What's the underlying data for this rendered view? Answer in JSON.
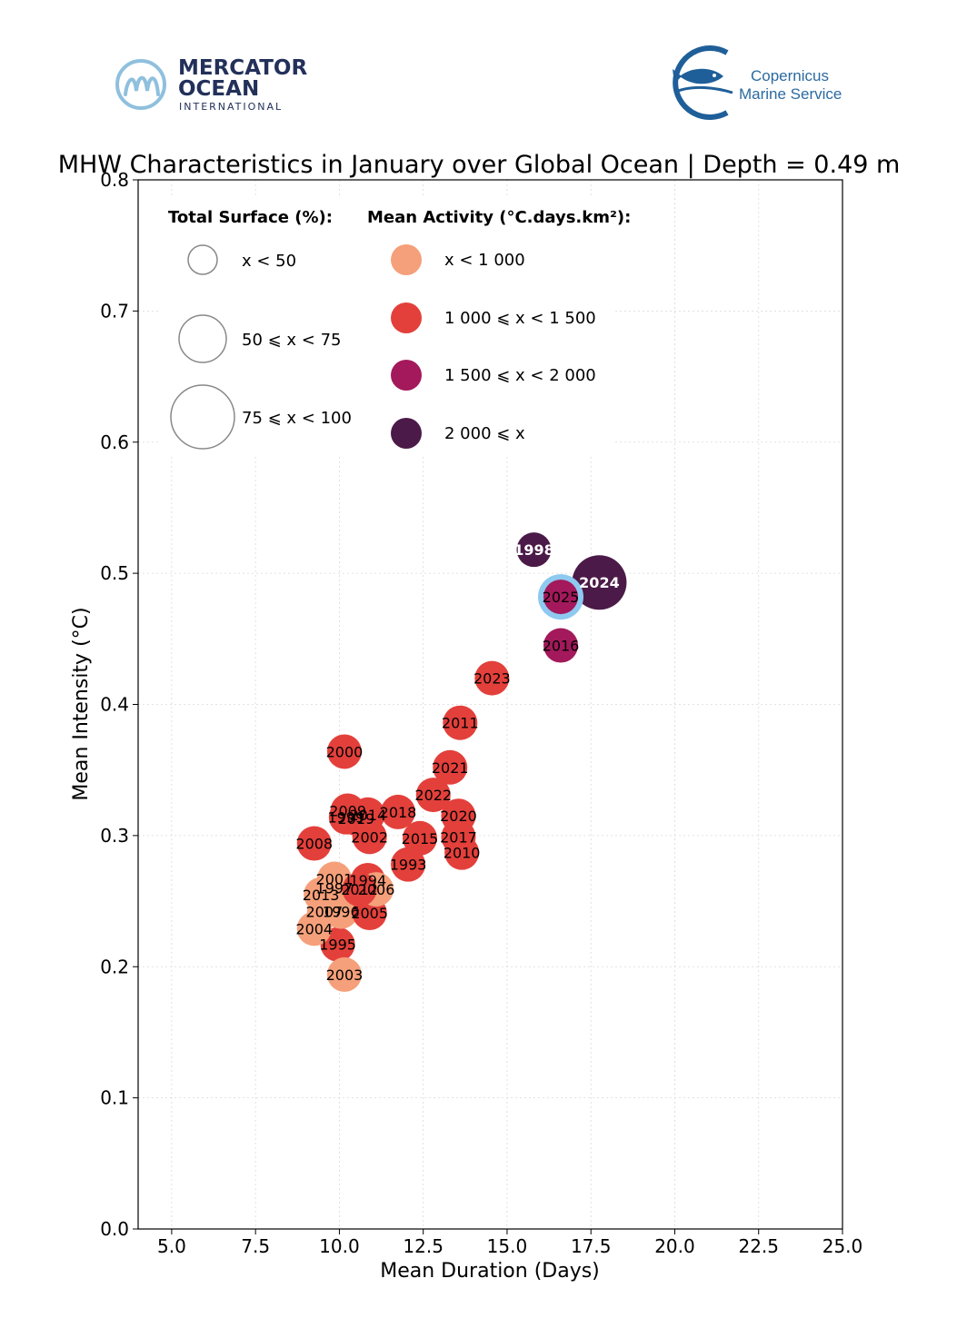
{
  "logos": {
    "mercator_line1": "MERCATOR",
    "mercator_line2": "OCEAN",
    "mercator_line3": "INTERNATIONAL",
    "copernicus_line1": "Copernicus",
    "copernicus_line2": "Marine Service"
  },
  "colors": {
    "lt1000": "#f5a07a",
    "c1000_1500": "#e3403b",
    "c1500_2000": "#a3195b",
    "ge2000": "#4b1a48",
    "highlight_ring": "#8ec9f0"
  },
  "chart_data": {
    "type": "scatter",
    "title": "MHW Characteristics in January over Global Ocean | Depth = 0.49 m",
    "xlabel": "Mean Duration (Days)",
    "ylabel": "Mean Intensity (°C)",
    "xlim": [
      4,
      25
    ],
    "ylim": [
      0,
      0.8
    ],
    "xticks": [
      "5.0",
      "7.5",
      "10.0",
      "12.5",
      "15.0",
      "17.5",
      "20.0",
      "22.5",
      "25.0"
    ],
    "yticks": [
      "0.0",
      "0.1",
      "0.2",
      "0.3",
      "0.4",
      "0.5",
      "0.6",
      "0.7",
      "0.8"
    ],
    "grid": true,
    "legend": {
      "placement": "top-left",
      "size_title": "Total Surface (%):",
      "size_items": [
        "x < 50",
        "50 ⩽ x < 75",
        "75 ⩽ x < 100"
      ],
      "color_title": "Mean Activity (°C.days.km²):",
      "color_items": [
        "x < 1 000",
        "1 000 ⩽ x < 1 500",
        "1 500 ⩽ x < 2 000",
        "2 000 ⩽ x"
      ]
    },
    "points": [
      {
        "year": "1993",
        "x": 12.05,
        "y": 0.278,
        "activity": "1000-1500",
        "surface": "<50"
      },
      {
        "year": "1994",
        "x": 10.85,
        "y": 0.266,
        "activity": "1000-1500",
        "surface": "<50"
      },
      {
        "year": "1995",
        "x": 9.95,
        "y": 0.217,
        "activity": "1000-1500",
        "surface": "<50"
      },
      {
        "year": "1996",
        "x": 10.05,
        "y": 0.242,
        "activity": "<1000",
        "surface": "<50"
      },
      {
        "year": "1997",
        "x": 9.85,
        "y": 0.26,
        "activity": "<1000",
        "surface": "<50"
      },
      {
        "year": "1998",
        "x": 15.8,
        "y": 0.518,
        "activity": ">=2000",
        "surface": "<50"
      },
      {
        "year": "1999",
        "x": 10.2,
        "y": 0.314,
        "activity": "1000-1500",
        "surface": "<50"
      },
      {
        "year": "2000",
        "x": 10.15,
        "y": 0.364,
        "activity": "1000-1500",
        "surface": "<50"
      },
      {
        "year": "2001",
        "x": 9.85,
        "y": 0.267,
        "activity": "<1000",
        "surface": "<50"
      },
      {
        "year": "2002",
        "x": 10.9,
        "y": 0.299,
        "activity": "1000-1500",
        "surface": "<50"
      },
      {
        "year": "2003",
        "x": 10.15,
        "y": 0.194,
        "activity": "<1000",
        "surface": "<50"
      },
      {
        "year": "2004",
        "x": 9.25,
        "y": 0.229,
        "activity": "<1000",
        "surface": "<50"
      },
      {
        "year": "2005",
        "x": 10.9,
        "y": 0.241,
        "activity": "1000-1500",
        "surface": "<50"
      },
      {
        "year": "2006",
        "x": 11.1,
        "y": 0.259,
        "activity": "<1000",
        "surface": "<50"
      },
      {
        "year": "2007",
        "x": 9.55,
        "y": 0.242,
        "activity": "<1000",
        "surface": "<50"
      },
      {
        "year": "2008",
        "x": 9.25,
        "y": 0.294,
        "activity": "1000-1500",
        "surface": "<50"
      },
      {
        "year": "2009",
        "x": 10.25,
        "y": 0.319,
        "activity": "1000-1500",
        "surface": "<50"
      },
      {
        "year": "2010",
        "x": 13.65,
        "y": 0.287,
        "activity": "1000-1500",
        "surface": "<50"
      },
      {
        "year": "2011",
        "x": 13.6,
        "y": 0.386,
        "activity": "1000-1500",
        "surface": "<50"
      },
      {
        "year": "2012",
        "x": 10.6,
        "y": 0.259,
        "activity": "1000-1500",
        "surface": "<50"
      },
      {
        "year": "2013",
        "x": 9.45,
        "y": 0.255,
        "activity": "<1000",
        "surface": "<50"
      },
      {
        "year": "2014",
        "x": 10.85,
        "y": 0.316,
        "activity": "1000-1500",
        "surface": "<50"
      },
      {
        "year": "2015",
        "x": 12.4,
        "y": 0.298,
        "activity": "1000-1500",
        "surface": "<50"
      },
      {
        "year": "2016",
        "x": 16.6,
        "y": 0.445,
        "activity": "1500-2000",
        "surface": "<50"
      },
      {
        "year": "2017",
        "x": 13.55,
        "y": 0.299,
        "activity": "1000-1500",
        "surface": "<50"
      },
      {
        "year": "2018",
        "x": 11.75,
        "y": 0.318,
        "activity": "1000-1500",
        "surface": "<50"
      },
      {
        "year": "2019",
        "x": 10.5,
        "y": 0.313,
        "activity": "1000-1500",
        "surface": "<50"
      },
      {
        "year": "2020",
        "x": 13.55,
        "y": 0.315,
        "activity": "1000-1500",
        "surface": "<50"
      },
      {
        "year": "2021",
        "x": 13.3,
        "y": 0.352,
        "activity": "1000-1500",
        "surface": "<50"
      },
      {
        "year": "2022",
        "x": 12.8,
        "y": 0.331,
        "activity": "1000-1500",
        "surface": "<50"
      },
      {
        "year": "2023",
        "x": 14.55,
        "y": 0.42,
        "activity": "1000-1500",
        "surface": "<50"
      },
      {
        "year": "2024",
        "x": 17.75,
        "y": 0.493,
        "activity": ">=2000",
        "surface": "50-75"
      },
      {
        "year": "2025",
        "x": 16.6,
        "y": 0.482,
        "activity": "1500-2000",
        "surface": "<50",
        "highlight": true
      }
    ]
  }
}
